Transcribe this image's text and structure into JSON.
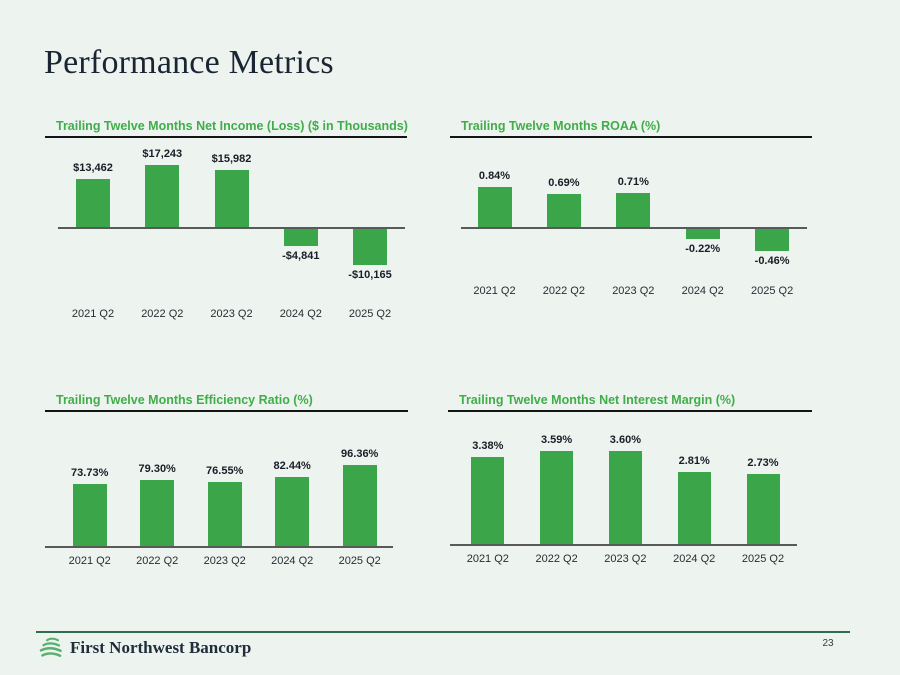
{
  "slide": {
    "title": "Performance Metrics",
    "footer_brand": "First Northwest Bancorp",
    "page_number": "23"
  },
  "colors": {
    "background": "#edf3ef",
    "bar_green": "#3ba549",
    "title_green": "#3fae49",
    "heading_navy": "#1a2533",
    "axis_gray": "#595959",
    "footer_line_green": "#2d6e4e"
  },
  "chart_data": [
    {
      "type": "bar",
      "title": "Trailing Twelve Months Net Income (Loss) ($ in Thousands)",
      "categories": [
        "2021 Q2",
        "2022 Q2",
        "2023 Q2",
        "2024 Q2",
        "2025 Q2"
      ],
      "values": [
        13462,
        17243,
        15982,
        -4841,
        -10165
      ],
      "labels": [
        "$13,462",
        "$17,243",
        "$15,982",
        "-$4,841",
        "-$10,165"
      ],
      "xlabel": "",
      "ylabel": "",
      "grid": false,
      "legend": false,
      "baseline": 0
    },
    {
      "type": "bar",
      "title": "Trailing Twelve Months ROAA (%)",
      "categories": [
        "2021 Q2",
        "2022 Q2",
        "2023 Q2",
        "2024 Q2",
        "2025 Q2"
      ],
      "values": [
        0.84,
        0.69,
        0.71,
        -0.22,
        -0.46
      ],
      "labels": [
        "0.84%",
        "0.69%",
        "0.71%",
        "-0.22%",
        "-0.46%"
      ],
      "xlabel": "",
      "ylabel": "",
      "grid": false,
      "legend": false,
      "baseline": 0
    },
    {
      "type": "bar",
      "title": "Trailing Twelve Months Efficiency Ratio (%)",
      "categories": [
        "2021 Q2",
        "2022 Q2",
        "2023 Q2",
        "2024 Q2",
        "2025 Q2"
      ],
      "values": [
        73.73,
        79.3,
        76.55,
        82.44,
        96.36
      ],
      "labels": [
        "73.73%",
        "79.30%",
        "76.55%",
        "82.44%",
        "96.36%"
      ],
      "xlabel": "",
      "ylabel": "",
      "grid": false,
      "legend": false,
      "baseline": 0
    },
    {
      "type": "bar",
      "title": "Trailing Twelve Months Net Interest Margin (%)",
      "categories": [
        "2021 Q2",
        "2022 Q2",
        "2023 Q2",
        "2024 Q2",
        "2025 Q2"
      ],
      "values": [
        3.38,
        3.59,
        3.6,
        2.81,
        2.73
      ],
      "labels": [
        "3.38%",
        "3.59%",
        "3.60%",
        "2.81%",
        "2.73%"
      ],
      "xlabel": "",
      "ylabel": "",
      "grid": false,
      "legend": false,
      "baseline": 0
    }
  ]
}
